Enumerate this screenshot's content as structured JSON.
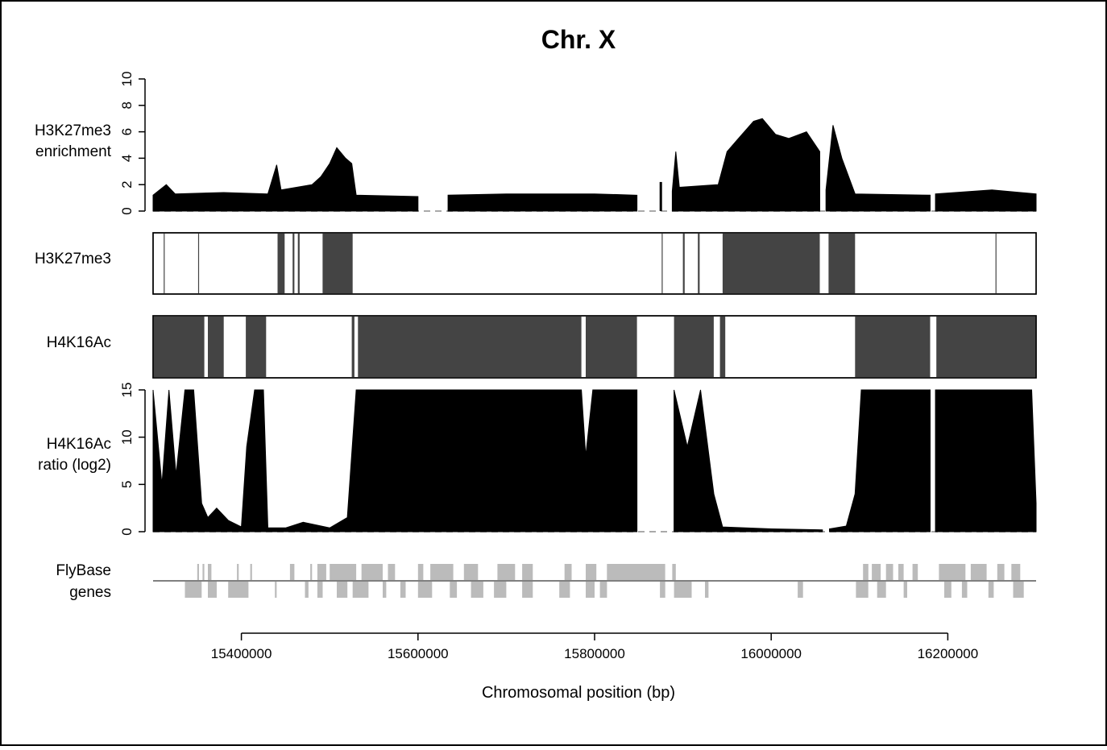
{
  "chart_data": {
    "type": "area",
    "title": "Chr. X",
    "xlabel": "Chromosomal position (bp)",
    "x_range": [
      15300000,
      16300000
    ],
    "x_ticks": [
      15400000,
      15600000,
      15800000,
      16000000,
      16200000
    ],
    "colors": {
      "signal": "#000000",
      "segment": "#444444",
      "gene": "#bbbbbb",
      "baseline": "#aaaaaa"
    },
    "panels": [
      {
        "id": "h3k27me3-enrichment",
        "label_lines": [
          "H3K27me3",
          "enrichment"
        ],
        "kind": "signal",
        "ylim": [
          0,
          10
        ],
        "yticks": [
          0,
          2,
          4,
          6,
          8,
          10
        ],
        "profile": [
          [
            15300000,
            1.2
          ],
          [
            15315000,
            2.0
          ],
          [
            15325000,
            1.3
          ],
          [
            15380000,
            1.4
          ],
          [
            15430000,
            1.3
          ],
          [
            15440000,
            3.5
          ],
          [
            15445000,
            1.6
          ],
          [
            15480000,
            2.0
          ],
          [
            15490000,
            2.6
          ],
          [
            15500000,
            3.6
          ],
          [
            15508000,
            4.8
          ],
          [
            15518000,
            4.0
          ],
          [
            15525000,
            3.6
          ],
          [
            15530000,
            1.2
          ],
          [
            15600000,
            1.1
          ],
          [
            15630000,
            null
          ],
          [
            15634000,
            1.2
          ],
          [
            15700000,
            1.3
          ],
          [
            15800000,
            1.3
          ],
          [
            15848000,
            1.2
          ],
          [
            15850000,
            null
          ],
          [
            15875000,
            2.2
          ],
          [
            15879000,
            null
          ],
          [
            15888000,
            1.5
          ],
          [
            15892000,
            4.5
          ],
          [
            15896000,
            1.8
          ],
          [
            15940000,
            2.0
          ],
          [
            15950000,
            4.5
          ],
          [
            15963000,
            5.5
          ],
          [
            15980000,
            6.8
          ],
          [
            15990000,
            7.0
          ],
          [
            16005000,
            5.8
          ],
          [
            16020000,
            5.5
          ],
          [
            16040000,
            6.0
          ],
          [
            16055000,
            4.5
          ],
          [
            16058000,
            null
          ],
          [
            16062000,
            1.6
          ],
          [
            16070000,
            6.5
          ],
          [
            16080000,
            4.0
          ],
          [
            16095000,
            1.3
          ],
          [
            16180000,
            1.2
          ],
          [
            16183000,
            null
          ],
          [
            16186000,
            1.3
          ],
          [
            16250000,
            1.6
          ],
          [
            16300000,
            1.3
          ]
        ]
      },
      {
        "id": "h3k27me3-segments",
        "label_lines": [
          "H3K27me3"
        ],
        "kind": "segments",
        "ranges": [
          [
            15312000,
            15313000
          ],
          [
            15351000,
            15352000
          ],
          [
            15441000,
            15449000
          ],
          [
            15458000,
            15460000
          ],
          [
            15464000,
            15466000
          ],
          [
            15492000,
            15526000
          ],
          [
            15876000,
            15877000
          ],
          [
            15900000,
            15902000
          ],
          [
            15917000,
            15919000
          ],
          [
            15945000,
            16055000
          ],
          [
            16065000,
            16095000
          ],
          [
            16254000,
            16255000
          ]
        ]
      },
      {
        "id": "h4k16ac-segments",
        "label_lines": [
          "H4K16Ac"
        ],
        "kind": "segments",
        "ranges": [
          [
            15300000,
            15358000
          ],
          [
            15362000,
            15380000
          ],
          [
            15405000,
            15428000
          ],
          [
            15525000,
            15528000
          ],
          [
            15532000,
            15785000
          ],
          [
            15790000,
            15848000
          ],
          [
            15890000,
            15935000
          ],
          [
            15942000,
            15948000
          ],
          [
            16095000,
            16180000
          ],
          [
            16187000,
            16300000
          ]
        ]
      },
      {
        "id": "h4k16ac-ratio",
        "label_lines": [
          "H4K16Ac",
          "ratio (log2)"
        ],
        "kind": "signal",
        "ylim": [
          0,
          15
        ],
        "yticks": [
          0,
          5,
          10,
          15
        ],
        "profile": [
          [
            15300000,
            15
          ],
          [
            15310000,
            5
          ],
          [
            15318000,
            15
          ],
          [
            15326000,
            6
          ],
          [
            15336000,
            15
          ],
          [
            15346000,
            15
          ],
          [
            15355000,
            3
          ],
          [
            15362000,
            1.5
          ],
          [
            15372000,
            2.5
          ],
          [
            15385000,
            1.2
          ],
          [
            15400000,
            0.5
          ],
          [
            15406000,
            9
          ],
          [
            15415000,
            15
          ],
          [
            15425000,
            15
          ],
          [
            15430000,
            0.4
          ],
          [
            15450000,
            0.4
          ],
          [
            15470000,
            1.0
          ],
          [
            15500000,
            0.4
          ],
          [
            15520000,
            1.5
          ],
          [
            15530000,
            15
          ],
          [
            15630000,
            15
          ],
          [
            15634000,
            15
          ],
          [
            15785000,
            15
          ],
          [
            15790000,
            8
          ],
          [
            15798000,
            15
          ],
          [
            15848000,
            15
          ],
          [
            15850000,
            null
          ],
          [
            15890000,
            15
          ],
          [
            15905000,
            9
          ],
          [
            15920000,
            15
          ],
          [
            15935000,
            4
          ],
          [
            15945000,
            0.5
          ],
          [
            16000000,
            0.3
          ],
          [
            16058000,
            0.2
          ],
          [
            16062000,
            null
          ],
          [
            16066000,
            0.3
          ],
          [
            16085000,
            0.6
          ],
          [
            16095000,
            4
          ],
          [
            16102000,
            15
          ],
          [
            16180000,
            15
          ],
          [
            16183000,
            null
          ],
          [
            16186000,
            15
          ],
          [
            16295000,
            15
          ],
          [
            16300000,
            3
          ]
        ]
      },
      {
        "id": "flybase-genes",
        "label_lines": [
          "FlyBase",
          "genes"
        ],
        "kind": "genes",
        "plus_strand": [
          [
            15350000,
            15352000
          ],
          [
            15356000,
            15358000
          ],
          [
            15362000,
            15366000
          ],
          [
            15395000,
            15397000
          ],
          [
            15410000,
            15412000
          ],
          [
            15455000,
            15460000
          ],
          [
            15478000,
            15480000
          ],
          [
            15486000,
            15496000
          ],
          [
            15500000,
            15530000
          ],
          [
            15536000,
            15560000
          ],
          [
            15566000,
            15574000
          ],
          [
            15600000,
            15606000
          ],
          [
            15614000,
            15640000
          ],
          [
            15652000,
            15668000
          ],
          [
            15690000,
            15710000
          ],
          [
            15718000,
            15730000
          ],
          [
            15766000,
            15774000
          ],
          [
            15790000,
            15802000
          ],
          [
            15814000,
            15880000
          ],
          [
            15888000,
            15892000
          ],
          [
            16104000,
            16110000
          ],
          [
            16114000,
            16124000
          ],
          [
            16130000,
            16138000
          ],
          [
            16144000,
            16150000
          ],
          [
            16160000,
            16166000
          ],
          [
            16190000,
            16220000
          ],
          [
            16226000,
            16244000
          ],
          [
            16256000,
            16264000
          ],
          [
            16272000,
            16282000
          ]
        ],
        "minus_strand": [
          [
            15336000,
            15355000
          ],
          [
            15362000,
            15372000
          ],
          [
            15385000,
            15408000
          ],
          [
            15438000,
            15440000
          ],
          [
            15472000,
            15476000
          ],
          [
            15486000,
            15492000
          ],
          [
            15508000,
            15520000
          ],
          [
            15526000,
            15544000
          ],
          [
            15560000,
            15564000
          ],
          [
            15580000,
            15586000
          ],
          [
            15600000,
            15616000
          ],
          [
            15636000,
            15644000
          ],
          [
            15660000,
            15674000
          ],
          [
            15686000,
            15700000
          ],
          [
            15718000,
            15730000
          ],
          [
            15760000,
            15772000
          ],
          [
            15790000,
            15800000
          ],
          [
            15806000,
            15814000
          ],
          [
            15874000,
            15880000
          ],
          [
            15890000,
            15910000
          ],
          [
            15925000,
            15929000
          ],
          [
            16030000,
            16036000
          ],
          [
            16096000,
            16110000
          ],
          [
            16120000,
            16130000
          ],
          [
            16150000,
            16154000
          ],
          [
            16196000,
            16204000
          ],
          [
            16216000,
            16222000
          ],
          [
            16246000,
            16252000
          ],
          [
            16274000,
            16286000
          ]
        ]
      }
    ]
  }
}
